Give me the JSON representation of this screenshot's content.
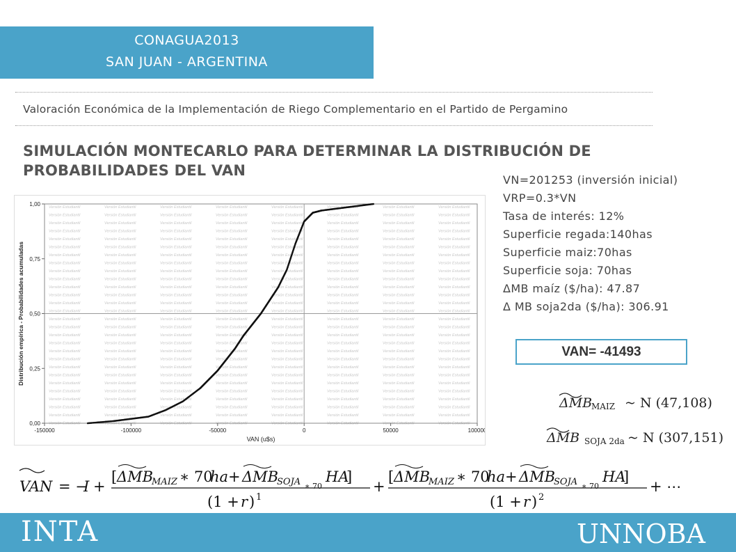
{
  "header": {
    "line1": "CONAGUA2013",
    "line2": "SAN JUAN - ARGENTINA"
  },
  "subtitle": "Valoración Económica de la Implementación de Riego Complementario en el Partido de Pergamino",
  "title": "SIMULACIÓN MONTECARLO PARA DETERMINAR  LA DISTRIBUCIÓN DE PROBABILIDADES DEL VAN",
  "params": [
    "VN=201253 (inversión inicial)",
    "VRP=0.3*VN",
    "Tasa de interés: 12%",
    "Superficie regada:140has",
    "Superficie maiz:70has",
    "Superficie soja: 70has",
    "ΔMB maíz ($/ha): 47.87",
    "Δ MB soja2da ($/ha): 306.91"
  ],
  "van_box": "VAN=  -41493",
  "formulas": {
    "maiz": {
      "lhs": "ΔMB",
      "sub": "MAIZ",
      "rhs": "~ N (47,108)"
    },
    "soja": {
      "lhs": "ΔMB",
      "sub": "SOJA 2da",
      "rhs": "~ N (307,151)"
    }
  },
  "chart_data": {
    "type": "scatter",
    "xlabel": "VAN (u$s)",
    "ylabel": "Distribución empírica - Probabilidades acumuladas",
    "xlim": [
      -150000,
      100000
    ],
    "ylim": [
      0,
      1
    ],
    "x_ticks": [
      "-150000",
      "-100000",
      "-50000",
      "0",
      "50000",
      "100000"
    ],
    "y_ticks": [
      "0,00",
      "0,25",
      "0,50",
      "0,75",
      "1,00"
    ],
    "watermark": "Versión Estudiantil",
    "reference_lines": {
      "x": 0,
      "y": 0.5
    },
    "series": [
      {
        "x": [
          -125000,
          -110000,
          -100000,
          -90000,
          -80000,
          -70000,
          -60000,
          -55000,
          -50000,
          -45000,
          -40000,
          -35000,
          -30000,
          -25000,
          -20000,
          -15000,
          -10000,
          -5000,
          0,
          5000,
          10000,
          20000,
          30000,
          40000
        ],
        "y": [
          0.0,
          0.01,
          0.02,
          0.03,
          0.06,
          0.1,
          0.16,
          0.2,
          0.24,
          0.29,
          0.34,
          0.4,
          0.45,
          0.5,
          0.56,
          0.62,
          0.7,
          0.82,
          0.92,
          0.96,
          0.97,
          0.98,
          0.99,
          1.0
        ]
      }
    ]
  },
  "footer": {
    "left": "INTA",
    "right": "UNNOBA"
  }
}
